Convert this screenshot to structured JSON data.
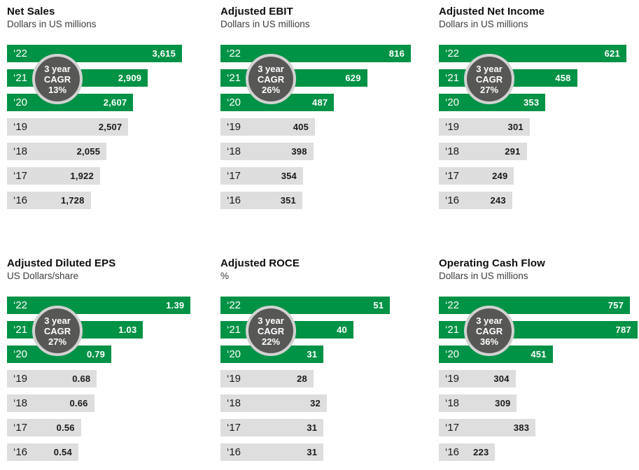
{
  "colors": {
    "green": "#009245",
    "gray_bar": "#dedede",
    "circle_fill": "#575756",
    "circle_ring": "#d2d2d2",
    "text_on_green": "#ffffff",
    "text_on_gray": "#1a1a1a"
  },
  "chart_data": [
    {
      "type": "bar",
      "orientation": "horizontal",
      "title": "Net Sales",
      "subtitle": "Dollars in US millions",
      "categories": [
        "‘22",
        "‘21",
        "‘20",
        "‘19",
        "‘18",
        "‘17",
        "‘16"
      ],
      "values": [
        3615,
        2909,
        2607,
        2507,
        2055,
        1922,
        1728
      ],
      "value_labels": [
        "3,615",
        "2,909",
        "2,607",
        "2,507",
        "2,055",
        "1,922",
        "1,728"
      ],
      "highlight_count": 3,
      "cagr_lines": [
        "3 year",
        "CAGR",
        "13%"
      ],
      "xmax": 4120,
      "grid": false,
      "legend": "none"
    },
    {
      "type": "bar",
      "orientation": "horizontal",
      "title": "Adjusted EBIT",
      "subtitle": "Dollars in US millions",
      "categories": [
        "‘22",
        "‘21",
        "‘20",
        "‘19",
        "‘18",
        "‘17",
        "‘16"
      ],
      "values": [
        816,
        629,
        487,
        405,
        398,
        354,
        351
      ],
      "value_labels": [
        "816",
        "629",
        "487",
        "405",
        "398",
        "354",
        "351"
      ],
      "highlight_count": 3,
      "cagr_lines": [
        "3 year",
        "CAGR",
        "26%"
      ],
      "xmax": 855,
      "grid": false,
      "legend": "none"
    },
    {
      "type": "bar",
      "orientation": "horizontal",
      "title": "Adjusted Net Income",
      "subtitle": "Dollars in US millions",
      "categories": [
        "‘22",
        "‘21",
        "‘20",
        "‘19",
        "‘18",
        "‘17",
        "‘16"
      ],
      "values": [
        621,
        458,
        353,
        301,
        291,
        249,
        243
      ],
      "value_labels": [
        "621",
        "458",
        "353",
        "301",
        "291",
        "249",
        "243"
      ],
      "highlight_count": 3,
      "cagr_lines": [
        "3 year",
        "CAGR",
        "27%"
      ],
      "xmax": 663,
      "grid": false,
      "legend": "none"
    },
    {
      "type": "bar",
      "orientation": "horizontal",
      "title": "Adjusted Diluted EPS",
      "subtitle": "US Dollars/share",
      "categories": [
        "‘22",
        "‘21",
        "‘20",
        "‘19",
        "‘18",
        "‘17",
        "‘16"
      ],
      "values": [
        1.39,
        1.03,
        0.79,
        0.68,
        0.66,
        0.56,
        0.54
      ],
      "value_labels": [
        "1.39",
        "1.03",
        "0.79",
        "0.68",
        "0.66",
        "0.56",
        "0.54"
      ],
      "highlight_count": 3,
      "cagr_lines": [
        "3 year",
        "CAGR",
        "27%"
      ],
      "xmax": 1.51,
      "grid": false,
      "legend": "none"
    },
    {
      "type": "bar",
      "orientation": "horizontal",
      "title": "Adjusted ROCE",
      "subtitle": "%",
      "categories": [
        "‘22",
        "‘21",
        "‘20",
        "‘19",
        "‘18",
        "‘17",
        "‘16"
      ],
      "values": [
        51,
        40,
        31,
        28,
        32,
        31,
        31
      ],
      "value_labels": [
        "51",
        "40",
        "31",
        "28",
        "32",
        "31",
        "31"
      ],
      "highlight_count": 3,
      "cagr_lines": [
        "3 year",
        "CAGR",
        "22%"
      ],
      "xmax": 60,
      "grid": false,
      "legend": "none"
    },
    {
      "type": "bar",
      "orientation": "horizontal",
      "title": "Operating Cash Flow",
      "subtitle": "Dollars in US millions",
      "categories": [
        "‘22",
        "‘21",
        "‘20",
        "‘19",
        "‘18",
        "‘17",
        "‘16"
      ],
      "values": [
        757,
        787,
        451,
        304,
        309,
        383,
        223
      ],
      "value_labels": [
        "757",
        "787",
        "451",
        "304",
        "309",
        "383",
        "223"
      ],
      "highlight_count": 3,
      "cagr_lines": [
        "3 year",
        "CAGR",
        "36%"
      ],
      "xmax": 793,
      "grid": false,
      "legend": "none"
    }
  ]
}
